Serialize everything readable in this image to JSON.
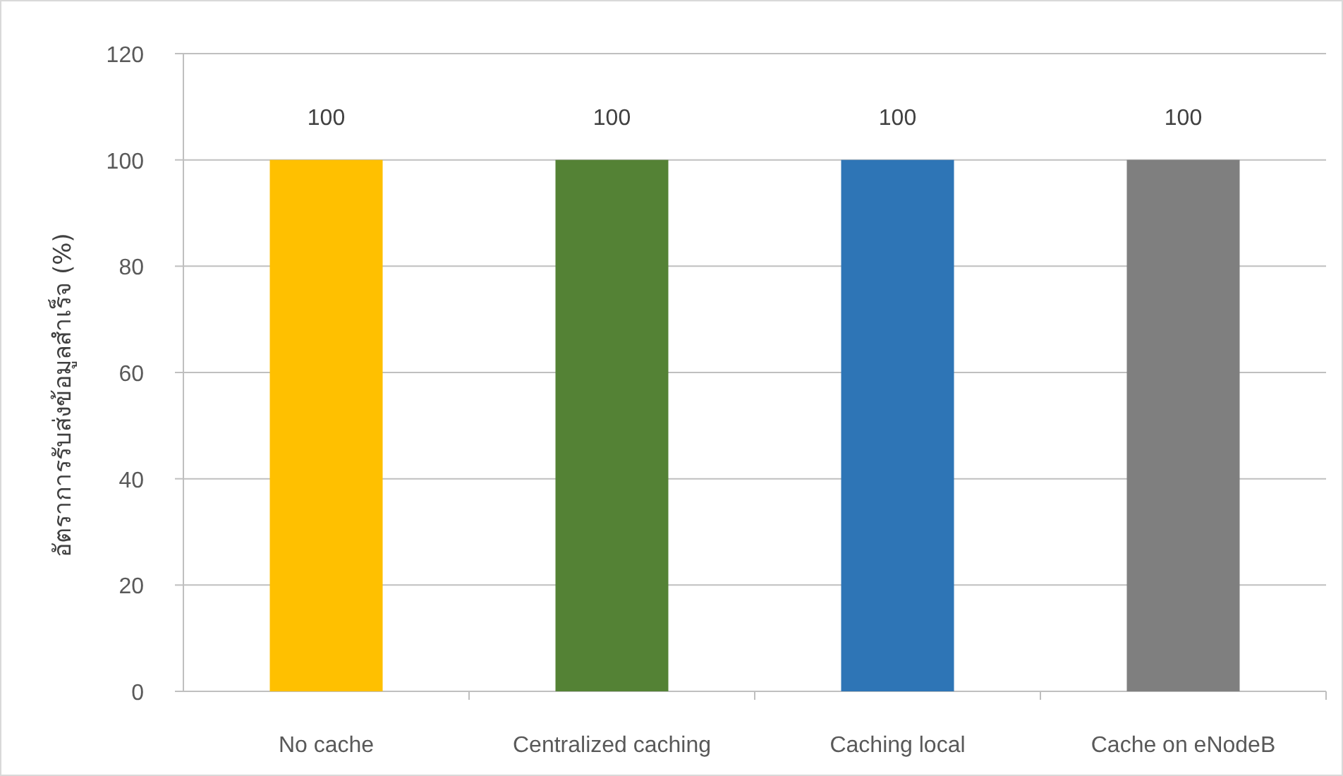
{
  "chart_data": {
    "type": "bar",
    "ylabel": "อัตราการรับส่งข้อมูลสำเร็จ (%)",
    "categories": [
      "No cache",
      "Centralized caching",
      "Caching local",
      "Cache on eNodeB"
    ],
    "values": [
      100,
      100,
      100,
      100
    ],
    "colors": [
      "#ffc000",
      "#548235",
      "#2e75b6",
      "#7f7f7f"
    ],
    "ylim": [
      0,
      120
    ],
    "yticks": [
      0,
      20,
      40,
      60,
      80,
      100,
      120
    ],
    "grid": "y",
    "data_labels": true
  }
}
